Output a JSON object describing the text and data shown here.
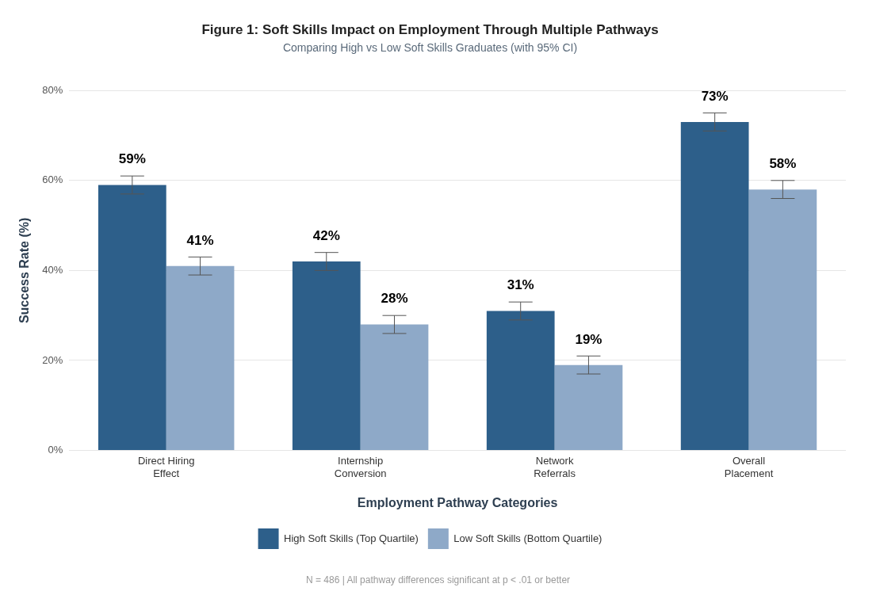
{
  "chart_data": {
    "type": "bar",
    "title": "Figure 1: Soft Skills Impact on Employment Through Multiple Pathways",
    "subtitle": "Comparing High vs Low Soft Skills Graduates (with 95% CI)",
    "xlabel": "Employment Pathway Categories",
    "ylabel": "Success Rate (%)",
    "categories": [
      "Direct Hiring Effect",
      "Internship Conversion",
      "Network Referrals",
      "Overall Placement"
    ],
    "series": [
      {
        "name": "High Soft Skills (Top Quartile)",
        "color": "#2d5f8a",
        "values": [
          59,
          42,
          31,
          73
        ],
        "errors": [
          2,
          2,
          2,
          2
        ],
        "value_labels": [
          "59%",
          "42%",
          "31%",
          "73%"
        ]
      },
      {
        "name": "Low Soft Skills (Bottom Quartile)",
        "color": "#8ea9c8",
        "values": [
          41,
          28,
          19,
          58
        ],
        "errors": [
          2,
          2,
          2,
          2
        ],
        "value_labels": [
          "41%",
          "28%",
          "19%",
          "58%"
        ]
      }
    ],
    "ylim": [
      0,
      80
    ],
    "yticks": [
      {
        "value": 0,
        "label": "0%"
      },
      {
        "value": 20,
        "label": "20%"
      },
      {
        "value": 40,
        "label": "40%"
      },
      {
        "value": 60,
        "label": "60%"
      },
      {
        "value": 80,
        "label": "80%"
      }
    ],
    "grid": "y",
    "legend": "bottom",
    "annotations": [
      "N = 486 | All pathway differences significant at p < .01 or better"
    ]
  }
}
